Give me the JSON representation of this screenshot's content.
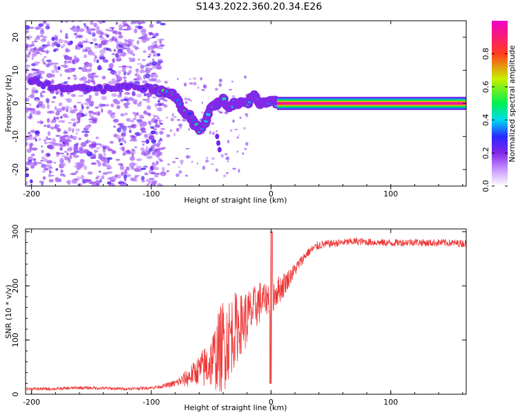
{
  "title": "S143.2022.360.20.34.E26",
  "colors": {
    "axis": "#000000",
    "snr_line": "#ee3333",
    "background": "#ffffff",
    "scatter_purple": "#7a1fe0"
  },
  "chart_data": [
    {
      "type": "heatmap",
      "xlabel": "Height of straight line (km)",
      "ylabel": "Frequency (Hz)",
      "xlim": [
        -205,
        163
      ],
      "ylim": [
        -25,
        25
      ],
      "xticks": [
        -200,
        -100,
        0,
        100
      ],
      "yticks": [
        -20,
        -10,
        0,
        10,
        20
      ],
      "colorbar": {
        "label": "Normalized spectral amplitude",
        "range": [
          0,
          1
        ],
        "ticks": [
          0.0,
          0.2,
          0.4,
          0.6,
          0.8
        ],
        "colormap": "hsv-rainbow (white-purple-blue-cyan-green-yellow-red-magenta)"
      },
      "features": {
        "noise_region_x": [
          -205,
          -90
        ],
        "main_track": [
          {
            "x": -200,
            "y": 7
          },
          {
            "x": -180,
            "y": 5
          },
          {
            "x": -160,
            "y": 5
          },
          {
            "x": -140,
            "y": 4
          },
          {
            "x": -120,
            "y": 5
          },
          {
            "x": -100,
            "y": 5
          },
          {
            "x": -95,
            "y": 4
          },
          {
            "x": -85,
            "y": 3
          },
          {
            "x": -80,
            "y": 2
          },
          {
            "x": -75,
            "y": -1
          },
          {
            "x": -72,
            "y": -3
          },
          {
            "x": -67,
            "y": -4
          },
          {
            "x": -64,
            "y": -6
          },
          {
            "x": -60,
            "y": -8
          },
          {
            "x": -55,
            "y": -6
          },
          {
            "x": -50,
            "y": -1
          },
          {
            "x": -45,
            "y": 0
          },
          {
            "x": -40,
            "y": 1
          },
          {
            "x": -35,
            "y": -1
          },
          {
            "x": -30,
            "y": 0
          },
          {
            "x": -25,
            "y": 0
          },
          {
            "x": -20,
            "y": 0
          },
          {
            "x": -14,
            "y": 3
          },
          {
            "x": -10,
            "y": 0
          },
          {
            "x": -5,
            "y": 0
          },
          {
            "x": 0,
            "y": 1
          },
          {
            "x": 5,
            "y": 0
          },
          {
            "x": 10,
            "y": 0
          }
        ],
        "steady_tone": {
          "x_start": 5,
          "x_end": 163,
          "y": 0
        }
      }
    },
    {
      "type": "line",
      "xlabel": "Height of straight line (km)",
      "ylabel": "SNR (10 * v/v)",
      "xlim": [
        -205,
        163
      ],
      "ylim": [
        0,
        305
      ],
      "xticks": [
        -200,
        -100,
        0,
        100
      ],
      "yticks": [
        0,
        100,
        200,
        300
      ],
      "series": [
        {
          "x": [
            -205,
            -180,
            -160,
            -140,
            -120,
            -100,
            -90,
            -80,
            -75,
            -70,
            -65,
            -60,
            -55,
            -50,
            -45,
            -40,
            -35,
            -30,
            -25,
            -20,
            -15,
            -10,
            -5,
            0,
            5,
            10,
            15,
            20,
            25,
            30,
            35,
            40,
            50,
            60,
            70,
            80,
            90,
            100,
            110,
            120,
            130,
            140,
            150,
            163
          ],
          "y": [
            10,
            10,
            12,
            11,
            10,
            12,
            15,
            20,
            25,
            30,
            38,
            45,
            50,
            60,
            75,
            90,
            105,
            120,
            130,
            140,
            155,
            170,
            175,
            180,
            190,
            200,
            215,
            230,
            245,
            260,
            268,
            275,
            278,
            280,
            282,
            281,
            280,
            279,
            280,
            281,
            279,
            280,
            279,
            278
          ],
          "spread": [
            4,
            4,
            4,
            4,
            4,
            4,
            5,
            10,
            15,
            25,
            30,
            40,
            60,
            70,
            100,
            130,
            110,
            100,
            80,
            80,
            60,
            60,
            40,
            50,
            40,
            35,
            25,
            18,
            15,
            12,
            12,
            12,
            10,
            10,
            10,
            10,
            10,
            10,
            10,
            10,
            10,
            10,
            10,
            10
          ]
        }
      ]
    }
  ]
}
